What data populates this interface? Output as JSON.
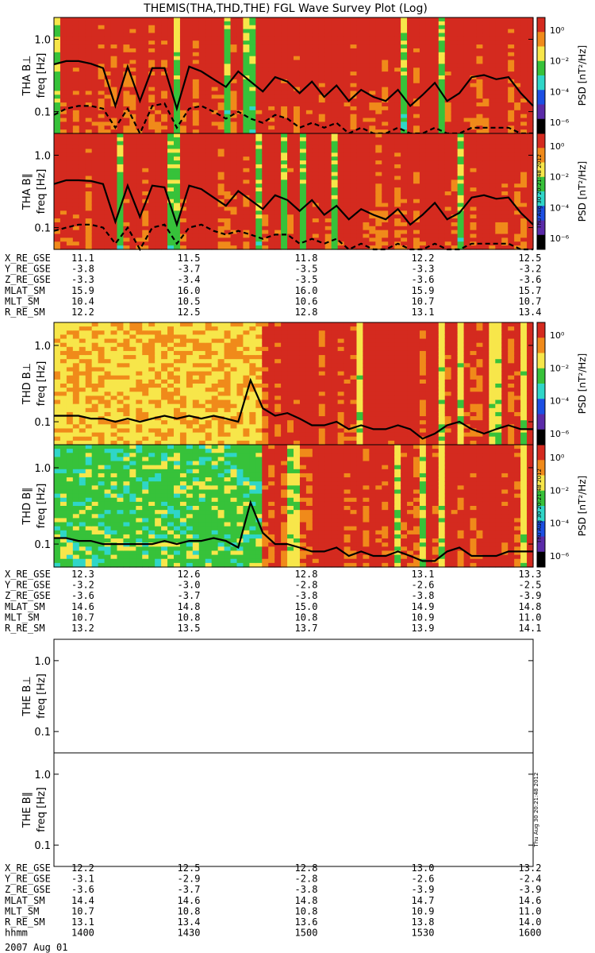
{
  "title": "THEMIS(THA,THD,THE) FGL Wave Survey Plot (Log)",
  "stamp": "Thu Aug 30 20:21:48 2012",
  "colorbar_title": "PSD [nT²/Hz]",
  "colorbar_ticks": [
    "10⁰",
    "10⁻²",
    "10⁻⁴",
    "10⁻⁶"
  ],
  "colors": {
    "red": "#d42a1f",
    "orange": "#f08a1a",
    "yellow": "#f7e64a",
    "green": "#37c23a",
    "cyan": "#2fd6c8",
    "blue": "#1d4fe3",
    "purple": "#5a2aa8",
    "line": "#000000"
  },
  "chart_data": [
    {
      "type": "heatmap",
      "probe": "THA",
      "panel_label": "THA B⊥",
      "ylabel": "freq [Hz]",
      "yscale": "log",
      "yticks": [
        "1.0",
        "0.1"
      ],
      "ylim_hz": [
        0.05,
        2.0
      ],
      "colorbar": {
        "label": "PSD [nT²/Hz]",
        "ticks": [
          "10⁰",
          "10⁻²",
          "10⁻⁴",
          "10⁻⁶"
        ],
        "range": [
          1e-06,
          10
        ]
      },
      "x_hhmm": [
        "1400",
        "1430",
        "1500",
        "1530",
        "1600"
      ],
      "series": [
        {
          "style": "solid",
          "values_hz": [
            0.45,
            0.5,
            0.5,
            0.46,
            0.4,
            0.12,
            0.42,
            0.14,
            0.4,
            0.4,
            0.11,
            0.42,
            0.36,
            0.28,
            0.22,
            0.36,
            0.26,
            0.19,
            0.3,
            0.26,
            0.18,
            0.26,
            0.16,
            0.23,
            0.14,
            0.2,
            0.16,
            0.14,
            0.2,
            0.12,
            0.17,
            0.25,
            0.14,
            0.18,
            0.3,
            0.32,
            0.28,
            0.3,
            0.18,
            0.12
          ]
        },
        {
          "style": "dashed",
          "values_hz": [
            0.09,
            0.11,
            0.12,
            0.12,
            0.11,
            0.06,
            0.11,
            0.05,
            0.12,
            0.13,
            0.06,
            0.11,
            0.12,
            0.1,
            0.08,
            0.1,
            0.08,
            0.07,
            0.09,
            0.08,
            0.06,
            0.07,
            0.06,
            0.07,
            0.05,
            0.06,
            0.05,
            0.05,
            0.06,
            0.05,
            0.05,
            0.06,
            0.05,
            0.05,
            0.06,
            0.06,
            0.06,
            0.06,
            0.05,
            0.05
          ]
        }
      ]
    },
    {
      "type": "heatmap",
      "probe": "THA",
      "panel_label": "THA B∥",
      "ylabel": "freq [Hz]",
      "yscale": "log",
      "yticks": [
        "1.0",
        "0.1"
      ],
      "ylim_hz": [
        0.05,
        2.0
      ],
      "colorbar": {
        "label": "PSD [nT²/Hz]",
        "ticks": [
          "10⁰",
          "10⁻²",
          "10⁻⁴",
          "10⁻⁶"
        ],
        "range": [
          1e-06,
          10
        ]
      },
      "x_hhmm": [
        "1400",
        "1430",
        "1500",
        "1530",
        "1600"
      ],
      "series": [
        {
          "style": "solid",
          "values_hz": [
            0.4,
            0.45,
            0.45,
            0.44,
            0.4,
            0.12,
            0.38,
            0.14,
            0.38,
            0.36,
            0.11,
            0.38,
            0.34,
            0.26,
            0.2,
            0.32,
            0.24,
            0.18,
            0.28,
            0.24,
            0.17,
            0.24,
            0.15,
            0.2,
            0.13,
            0.18,
            0.15,
            0.13,
            0.18,
            0.11,
            0.15,
            0.22,
            0.13,
            0.16,
            0.26,
            0.28,
            0.25,
            0.26,
            0.16,
            0.11
          ]
        },
        {
          "style": "dashed",
          "values_hz": [
            0.09,
            0.1,
            0.11,
            0.11,
            0.1,
            0.06,
            0.1,
            0.05,
            0.1,
            0.11,
            0.06,
            0.1,
            0.11,
            0.09,
            0.08,
            0.09,
            0.08,
            0.07,
            0.08,
            0.08,
            0.06,
            0.07,
            0.06,
            0.07,
            0.05,
            0.06,
            0.05,
            0.05,
            0.06,
            0.05,
            0.05,
            0.06,
            0.05,
            0.05,
            0.06,
            0.06,
            0.06,
            0.06,
            0.05,
            0.05
          ]
        }
      ]
    },
    {
      "type": "heatmap",
      "probe": "THD",
      "panel_label": "THD B⊥",
      "ylabel": "freq [Hz]",
      "yscale": "log",
      "yticks": [
        "1.0",
        "0.1"
      ],
      "ylim_hz": [
        0.05,
        2.0
      ],
      "colorbar": {
        "label": "PSD [nT²/Hz]",
        "ticks": [
          "10⁰",
          "10⁻²",
          "10⁻⁴",
          "10⁻⁶"
        ],
        "range": [
          1e-06,
          10
        ]
      },
      "x_hhmm": [
        "1400",
        "1430",
        "1500",
        "1530",
        "1600"
      ],
      "series": [
        {
          "style": "solid",
          "values_hz": [
            0.12,
            0.12,
            0.12,
            0.11,
            0.11,
            0.1,
            0.11,
            0.1,
            0.11,
            0.12,
            0.11,
            0.12,
            0.11,
            0.12,
            0.11,
            0.1,
            0.35,
            0.15,
            0.12,
            0.13,
            0.11,
            0.09,
            0.09,
            0.1,
            0.08,
            0.09,
            0.08,
            0.08,
            0.09,
            0.08,
            0.06,
            0.07,
            0.09,
            0.1,
            0.08,
            0.07,
            0.08,
            0.09,
            0.08,
            0.08
          ]
        }
      ]
    },
    {
      "type": "heatmap",
      "probe": "THD",
      "panel_label": "THD B∥",
      "ylabel": "freq [Hz]",
      "yscale": "log",
      "yticks": [
        "1.0",
        "0.1"
      ],
      "ylim_hz": [
        0.05,
        2.0
      ],
      "colorbar": {
        "label": "PSD [nT²/Hz]",
        "ticks": [
          "10⁰",
          "10⁻²",
          "10⁻⁴",
          "10⁻⁶"
        ],
        "range": [
          1e-06,
          10
        ]
      },
      "x_hhmm": [
        "1400",
        "1430",
        "1500",
        "1530",
        "1600"
      ],
      "series": [
        {
          "style": "solid",
          "values_hz": [
            0.12,
            0.12,
            0.11,
            0.11,
            0.1,
            0.1,
            0.1,
            0.1,
            0.1,
            0.11,
            0.1,
            0.11,
            0.11,
            0.12,
            0.11,
            0.09,
            0.35,
            0.14,
            0.1,
            0.1,
            0.09,
            0.08,
            0.08,
            0.09,
            0.07,
            0.08,
            0.07,
            0.07,
            0.08,
            0.07,
            0.06,
            0.06,
            0.08,
            0.09,
            0.07,
            0.07,
            0.07,
            0.08,
            0.08,
            0.08
          ]
        }
      ]
    },
    {
      "type": "heatmap",
      "probe": "THE",
      "panel_label": "THE B⊥",
      "ylabel": "freq [Hz]",
      "yscale": "log",
      "yticks": [
        "1.0",
        "0.1"
      ],
      "ylim_hz": [
        0.05,
        2.0
      ],
      "empty": true
    },
    {
      "type": "heatmap",
      "probe": "THE",
      "panel_label": "THE B∥",
      "ylabel": "freq [Hz]",
      "yscale": "log",
      "yticks": [
        "1.0",
        "0.1"
      ],
      "ylim_hz": [
        0.05,
        2.0
      ],
      "empty": true
    }
  ],
  "ephemeris": [
    {
      "probe": "THA",
      "rows": [
        {
          "label": "X_RE_GSE",
          "values": [
            "11.1",
            "11.5",
            "11.8",
            "12.2",
            "12.5"
          ]
        },
        {
          "label": "Y_RE_GSE",
          "values": [
            "-3.8",
            "-3.7",
            "-3.5",
            "-3.3",
            "-3.2"
          ]
        },
        {
          "label": "Z_RE_GSE",
          "values": [
            "-3.3",
            "-3.4",
            "-3.5",
            "-3.6",
            "-3.6"
          ]
        },
        {
          "label": "MLAT_SM",
          "values": [
            "15.9",
            "16.0",
            "16.0",
            "15.9",
            "15.7"
          ]
        },
        {
          "label": "MLT_SM",
          "values": [
            "10.4",
            "10.5",
            "10.6",
            "10.7",
            "10.7"
          ]
        },
        {
          "label": "R_RE_SM",
          "values": [
            "12.2",
            "12.5",
            "12.8",
            "13.1",
            "13.4"
          ]
        }
      ]
    },
    {
      "probe": "THD",
      "rows": [
        {
          "label": "X_RE_GSE",
          "values": [
            "12.3",
            "12.6",
            "12.8",
            "13.1",
            "13.3"
          ]
        },
        {
          "label": "Y_RE_GSE",
          "values": [
            "-3.2",
            "-3.0",
            "-2.8",
            "-2.6",
            "-2.5"
          ]
        },
        {
          "label": "Z_RE_GSE",
          "values": [
            "-3.6",
            "-3.7",
            "-3.8",
            "-3.8",
            "-3.9"
          ]
        },
        {
          "label": "MLAT_SM",
          "values": [
            "14.6",
            "14.8",
            "15.0",
            "14.9",
            "14.8"
          ]
        },
        {
          "label": "MLT_SM",
          "values": [
            "10.7",
            "10.8",
            "10.8",
            "10.9",
            "11.0"
          ]
        },
        {
          "label": "R_RE_SM",
          "values": [
            "13.2",
            "13.5",
            "13.7",
            "13.9",
            "14.1"
          ]
        }
      ]
    },
    {
      "probe": "THE",
      "rows": [
        {
          "label": "X_RE_GSE",
          "values": [
            "12.2",
            "12.5",
            "12.8",
            "13.0",
            "13.2"
          ]
        },
        {
          "label": "Y_RE_GSE",
          "values": [
            "-3.1",
            "-2.9",
            "-2.8",
            "-2.6",
            "-2.4"
          ]
        },
        {
          "label": "Z_RE_GSE",
          "values": [
            "-3.6",
            "-3.7",
            "-3.8",
            "-3.9",
            "-3.9"
          ]
        },
        {
          "label": "MLAT_SM",
          "values": [
            "14.4",
            "14.6",
            "14.8",
            "14.7",
            "14.6"
          ]
        },
        {
          "label": "MLT_SM",
          "values": [
            "10.7",
            "10.8",
            "10.8",
            "10.9",
            "11.0"
          ]
        },
        {
          "label": "R_RE_SM",
          "values": [
            "13.1",
            "13.4",
            "13.6",
            "13.8",
            "14.0"
          ]
        },
        {
          "label": "hhmm",
          "values": [
            "1400",
            "1430",
            "1500",
            "1530",
            "1600"
          ]
        }
      ]
    }
  ],
  "date": "2007 Aug 01"
}
